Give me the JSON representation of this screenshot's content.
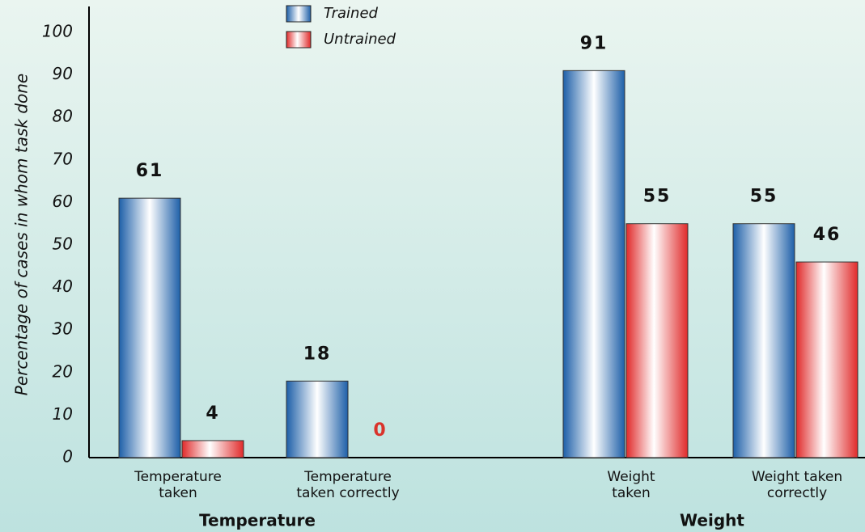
{
  "chart_data": {
    "type": "bar",
    "y_axis_label": "Percentage of cases in whom task done",
    "categories": [
      [
        "Temperature",
        "taken"
      ],
      [
        "Temperature",
        "taken correctly"
      ],
      [
        "Weight",
        "taken"
      ],
      [
        "Weight taken",
        "correctly"
      ]
    ],
    "groups": [
      "Temperature",
      "Weight"
    ],
    "series": [
      {
        "name": "Trained",
        "color": "#2a6db5",
        "values": [
          61,
          18,
          91,
          55
        ]
      },
      {
        "name": "Untrained",
        "color": "#e03535",
        "values": [
          4,
          0,
          55,
          46
        ]
      }
    ],
    "zero_label_color": "#d9332b",
    "ylim": [
      0,
      100
    ],
    "yticks": [
      0,
      10,
      20,
      30,
      40,
      50,
      60,
      70,
      80,
      90,
      100
    ],
    "grid": false
  }
}
